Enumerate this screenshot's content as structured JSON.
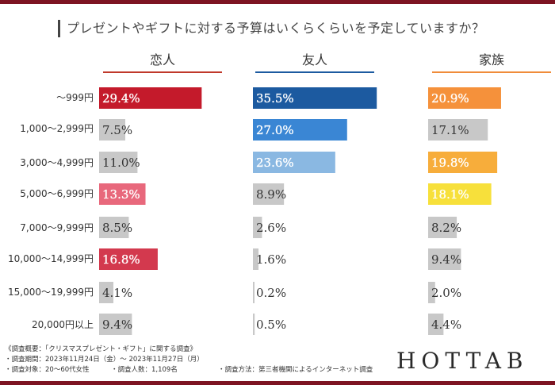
{
  "title": "プレゼントやギフトに対する予算はいくらくらいを予定していますか？",
  "chart_data": {
    "type": "bar",
    "orientation": "horizontal",
    "categories": [
      "～999円",
      "1,000～2,999円",
      "3,000～4,999円",
      "5,000～6,999円",
      "7,000～9,999円",
      "10,000～14,999円",
      "15,000～19,999円",
      "20,000円以上"
    ],
    "series": [
      {
        "name": "恋人",
        "values": [
          29.4,
          7.5,
          11.0,
          13.3,
          8.5,
          16.8,
          4.1,
          9.4
        ],
        "labels": [
          "29.4%",
          "7.5%",
          "11.0%",
          "13.3%",
          "8.5%",
          "16.8%",
          "4.1%",
          "9.4%"
        ],
        "colors": [
          "#c41a2b",
          "#c8c8c8",
          "#c8c8c8",
          "#e8687c",
          "#c8c8c8",
          "#d3394e",
          "#c8c8c8",
          "#c8c8c8"
        ],
        "header_line_color": "#c0392b"
      },
      {
        "name": "友人",
        "values": [
          35.5,
          27.0,
          23.6,
          8.9,
          2.6,
          1.6,
          0.2,
          0.5
        ],
        "labels": [
          "35.5%",
          "27.0%",
          "23.6%",
          "8.9%",
          "2.6%",
          "1.6%",
          "0.2%",
          "0.5%"
        ],
        "colors": [
          "#1c5aa0",
          "#3a86d4",
          "#8ab8e2",
          "#c8c8c8",
          "#c8c8c8",
          "#c8c8c8",
          "#c8c8c8",
          "#c8c8c8"
        ],
        "header_line_color": "#1c5aa0"
      },
      {
        "name": "家族",
        "values": [
          20.9,
          17.1,
          19.8,
          18.1,
          8.2,
          9.4,
          2.0,
          4.4
        ],
        "labels": [
          "20.9%",
          "17.1%",
          "19.8%",
          "18.1%",
          "8.2%",
          "9.4%",
          "2.0%",
          "4.4%"
        ],
        "colors": [
          "#f5913b",
          "#c8c8c8",
          "#f7ad3b",
          "#f7e03b",
          "#c8c8c8",
          "#c8c8c8",
          "#c8c8c8",
          "#c8c8c8"
        ],
        "header_line_color": "#f08c3a"
      }
    ]
  },
  "footnotes": [
    "《調査概要：「クリスマスプレゼント・ギフト」に関する調査》",
    "・調査期間：2023年11月24日（金）～ 2023年11月27日（月）",
    "・調査対象：20～60代女性",
    "・調査人数：1,109名",
    "・調査方法：第三者機関によるインターネット調査"
  ],
  "brand": "HOTTAB"
}
